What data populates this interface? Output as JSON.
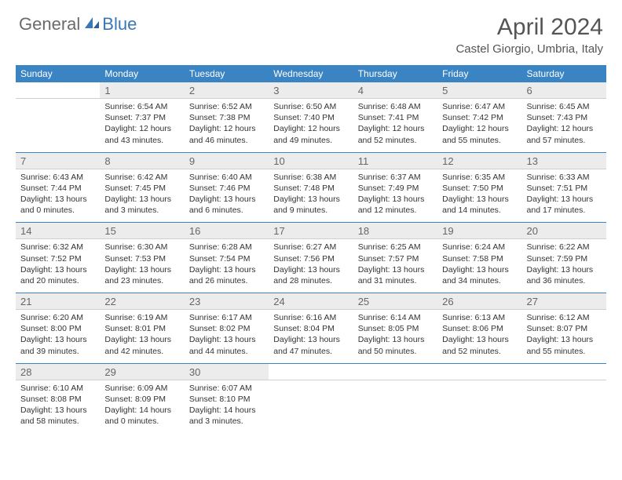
{
  "logo": {
    "part1": "General",
    "part2": "Blue"
  },
  "title": "April 2024",
  "location": "Castel Giorgio, Umbria, Italy",
  "dow": [
    "Sunday",
    "Monday",
    "Tuesday",
    "Wednesday",
    "Thursday",
    "Friday",
    "Saturday"
  ],
  "colors": {
    "header_bar": "#3b84c4",
    "daynum_bg": "#ececec",
    "row_border": "#3b84c4",
    "title_color": "#555"
  },
  "weeks": [
    {
      "nums": [
        "",
        "1",
        "2",
        "3",
        "4",
        "5",
        "6"
      ],
      "cells": [
        null,
        {
          "sr": "Sunrise: 6:54 AM",
          "ss": "Sunset: 7:37 PM",
          "d1": "Daylight: 12 hours",
          "d2": "and 43 minutes."
        },
        {
          "sr": "Sunrise: 6:52 AM",
          "ss": "Sunset: 7:38 PM",
          "d1": "Daylight: 12 hours",
          "d2": "and 46 minutes."
        },
        {
          "sr": "Sunrise: 6:50 AM",
          "ss": "Sunset: 7:40 PM",
          "d1": "Daylight: 12 hours",
          "d2": "and 49 minutes."
        },
        {
          "sr": "Sunrise: 6:48 AM",
          "ss": "Sunset: 7:41 PM",
          "d1": "Daylight: 12 hours",
          "d2": "and 52 minutes."
        },
        {
          "sr": "Sunrise: 6:47 AM",
          "ss": "Sunset: 7:42 PM",
          "d1": "Daylight: 12 hours",
          "d2": "and 55 minutes."
        },
        {
          "sr": "Sunrise: 6:45 AM",
          "ss": "Sunset: 7:43 PM",
          "d1": "Daylight: 12 hours",
          "d2": "and 57 minutes."
        }
      ]
    },
    {
      "nums": [
        "7",
        "8",
        "9",
        "10",
        "11",
        "12",
        "13"
      ],
      "cells": [
        {
          "sr": "Sunrise: 6:43 AM",
          "ss": "Sunset: 7:44 PM",
          "d1": "Daylight: 13 hours",
          "d2": "and 0 minutes."
        },
        {
          "sr": "Sunrise: 6:42 AM",
          "ss": "Sunset: 7:45 PM",
          "d1": "Daylight: 13 hours",
          "d2": "and 3 minutes."
        },
        {
          "sr": "Sunrise: 6:40 AM",
          "ss": "Sunset: 7:46 PM",
          "d1": "Daylight: 13 hours",
          "d2": "and 6 minutes."
        },
        {
          "sr": "Sunrise: 6:38 AM",
          "ss": "Sunset: 7:48 PM",
          "d1": "Daylight: 13 hours",
          "d2": "and 9 minutes."
        },
        {
          "sr": "Sunrise: 6:37 AM",
          "ss": "Sunset: 7:49 PM",
          "d1": "Daylight: 13 hours",
          "d2": "and 12 minutes."
        },
        {
          "sr": "Sunrise: 6:35 AM",
          "ss": "Sunset: 7:50 PM",
          "d1": "Daylight: 13 hours",
          "d2": "and 14 minutes."
        },
        {
          "sr": "Sunrise: 6:33 AM",
          "ss": "Sunset: 7:51 PM",
          "d1": "Daylight: 13 hours",
          "d2": "and 17 minutes."
        }
      ]
    },
    {
      "nums": [
        "14",
        "15",
        "16",
        "17",
        "18",
        "19",
        "20"
      ],
      "cells": [
        {
          "sr": "Sunrise: 6:32 AM",
          "ss": "Sunset: 7:52 PM",
          "d1": "Daylight: 13 hours",
          "d2": "and 20 minutes."
        },
        {
          "sr": "Sunrise: 6:30 AM",
          "ss": "Sunset: 7:53 PM",
          "d1": "Daylight: 13 hours",
          "d2": "and 23 minutes."
        },
        {
          "sr": "Sunrise: 6:28 AM",
          "ss": "Sunset: 7:54 PM",
          "d1": "Daylight: 13 hours",
          "d2": "and 26 minutes."
        },
        {
          "sr": "Sunrise: 6:27 AM",
          "ss": "Sunset: 7:56 PM",
          "d1": "Daylight: 13 hours",
          "d2": "and 28 minutes."
        },
        {
          "sr": "Sunrise: 6:25 AM",
          "ss": "Sunset: 7:57 PM",
          "d1": "Daylight: 13 hours",
          "d2": "and 31 minutes."
        },
        {
          "sr": "Sunrise: 6:24 AM",
          "ss": "Sunset: 7:58 PM",
          "d1": "Daylight: 13 hours",
          "d2": "and 34 minutes."
        },
        {
          "sr": "Sunrise: 6:22 AM",
          "ss": "Sunset: 7:59 PM",
          "d1": "Daylight: 13 hours",
          "d2": "and 36 minutes."
        }
      ]
    },
    {
      "nums": [
        "21",
        "22",
        "23",
        "24",
        "25",
        "26",
        "27"
      ],
      "cells": [
        {
          "sr": "Sunrise: 6:20 AM",
          "ss": "Sunset: 8:00 PM",
          "d1": "Daylight: 13 hours",
          "d2": "and 39 minutes."
        },
        {
          "sr": "Sunrise: 6:19 AM",
          "ss": "Sunset: 8:01 PM",
          "d1": "Daylight: 13 hours",
          "d2": "and 42 minutes."
        },
        {
          "sr": "Sunrise: 6:17 AM",
          "ss": "Sunset: 8:02 PM",
          "d1": "Daylight: 13 hours",
          "d2": "and 44 minutes."
        },
        {
          "sr": "Sunrise: 6:16 AM",
          "ss": "Sunset: 8:04 PM",
          "d1": "Daylight: 13 hours",
          "d2": "and 47 minutes."
        },
        {
          "sr": "Sunrise: 6:14 AM",
          "ss": "Sunset: 8:05 PM",
          "d1": "Daylight: 13 hours",
          "d2": "and 50 minutes."
        },
        {
          "sr": "Sunrise: 6:13 AM",
          "ss": "Sunset: 8:06 PM",
          "d1": "Daylight: 13 hours",
          "d2": "and 52 minutes."
        },
        {
          "sr": "Sunrise: 6:12 AM",
          "ss": "Sunset: 8:07 PM",
          "d1": "Daylight: 13 hours",
          "d2": "and 55 minutes."
        }
      ]
    },
    {
      "nums": [
        "28",
        "29",
        "30",
        "",
        "",
        "",
        ""
      ],
      "cells": [
        {
          "sr": "Sunrise: 6:10 AM",
          "ss": "Sunset: 8:08 PM",
          "d1": "Daylight: 13 hours",
          "d2": "and 58 minutes."
        },
        {
          "sr": "Sunrise: 6:09 AM",
          "ss": "Sunset: 8:09 PM",
          "d1": "Daylight: 14 hours",
          "d2": "and 0 minutes."
        },
        {
          "sr": "Sunrise: 6:07 AM",
          "ss": "Sunset: 8:10 PM",
          "d1": "Daylight: 14 hours",
          "d2": "and 3 minutes."
        },
        null,
        null,
        null,
        null
      ],
      "last": true
    }
  ]
}
